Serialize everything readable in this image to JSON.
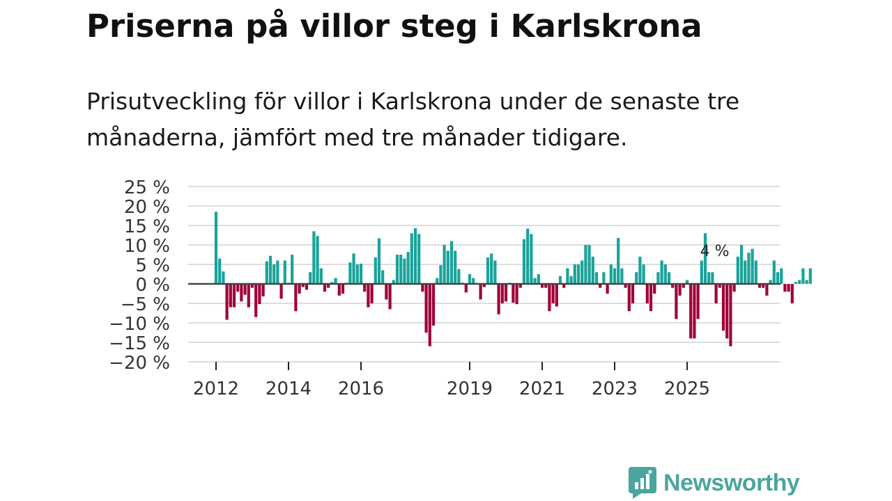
{
  "title": "Priserna på villor steg i Karlskrona",
  "subtitle": "Prisutveckling för villor i Karlskrona under de senaste tre månaderna, jämfört med tre månader tidigare.",
  "brand": {
    "name": "Newsworthy",
    "icon": "newsworthy-logo-icon"
  },
  "colors": {
    "positive": "#1aa39a",
    "negative": "#a0003a",
    "grid": "#dddddd",
    "zero_line": "#444444",
    "text": "#333333"
  },
  "chart_data": {
    "type": "bar",
    "title": "Priserna på villor steg i Karlskrona",
    "xlabel": "",
    "ylabel": "",
    "ylim": [
      -20,
      25
    ],
    "y_ticks": [
      25,
      20,
      15,
      10,
      5,
      0,
      -5,
      -10,
      -15,
      -20
    ],
    "y_tick_labels": [
      "25 %",
      "20 %",
      "15 %",
      "10 %",
      "5 %",
      "0 %",
      "−5 %",
      "−10 %",
      "−15 %",
      "−20 %"
    ],
    "x_ticks": [
      {
        "label": "2012",
        "index": 0
      },
      {
        "label": "2014",
        "index": 20
      },
      {
        "label": "2016",
        "index": 40
      },
      {
        "label": "2019",
        "index": 70
      },
      {
        "label": "2021",
        "index": 90
      },
      {
        "label": "2023",
        "index": 110
      },
      {
        "label": "2025",
        "index": 130
      }
    ],
    "annotation": {
      "text": "4 %",
      "index": 138
    },
    "values": [
      18.5,
      6.5,
      3.2,
      -9.2,
      -6.0,
      -6.0,
      -2.0,
      -4.5,
      -2.8,
      -6.0,
      -1.0,
      -8.5,
      -5.2,
      -3.2,
      5.8,
      7.2,
      5.0,
      6.0,
      -3.8,
      6.0,
      0.3,
      7.5,
      -7.0,
      -2.5,
      -0.8,
      -1.5,
      3.0,
      13.5,
      12.3,
      4.0,
      -2.0,
      -1.0,
      0.5,
      1.5,
      -3.0,
      -2.5,
      0.3,
      5.5,
      7.8,
      5.0,
      5.2,
      -2.0,
      -6.0,
      -5.0,
      6.8,
      11.7,
      3.5,
      -4.0,
      -6.5,
      1.0,
      7.5,
      7.5,
      6.5,
      8.2,
      13.0,
      14.3,
      12.8,
      -2.0,
      -12.5,
      -16.0,
      -10.7,
      1.5,
      4.8,
      10.0,
      8.5,
      11.0,
      8.5,
      3.8,
      0.3,
      -2.2,
      2.5,
      1.5,
      0.2,
      -4.0,
      -0.8,
      6.8,
      7.8,
      6.0,
      -7.8,
      -5.0,
      -4.5,
      0.3,
      -4.8,
      -5.2,
      -1.0,
      11.5,
      14.2,
      12.8,
      1.5,
      2.5,
      -1.0,
      -1.0,
      -7.0,
      -5.0,
      -5.8,
      2.0,
      -1.0,
      4.0,
      2.0,
      5.0,
      5.0,
      6.0,
      10.0,
      10.0,
      7.0,
      3.0,
      -1.0,
      3.0,
      -2.5,
      5.0,
      4.0,
      11.8,
      4.0,
      -1.0,
      -7.0,
      -5.0,
      3.0,
      7.0,
      5.0,
      -5.0,
      -7.0,
      -2.5,
      3.0,
      6.0,
      5.0,
      3.0,
      -1.0,
      -9.0,
      -3.0,
      -1.0,
      1.0,
      -14.0,
      -14.0,
      -9.0,
      6.0,
      13.0,
      3.0,
      3.0,
      -5.0,
      -1.0,
      -12.0,
      -14.0,
      -16.0,
      -2.0,
      7.0,
      10.0,
      6.0,
      8.0,
      9.0,
      6.0,
      -1.0,
      -1.0,
      -3.0,
      1.0,
      6.0,
      3.0,
      4.0,
      -2.0,
      -2.0,
      -5.0,
      0.5,
      1.0,
      4.0,
      1.0,
      4.0
    ]
  }
}
